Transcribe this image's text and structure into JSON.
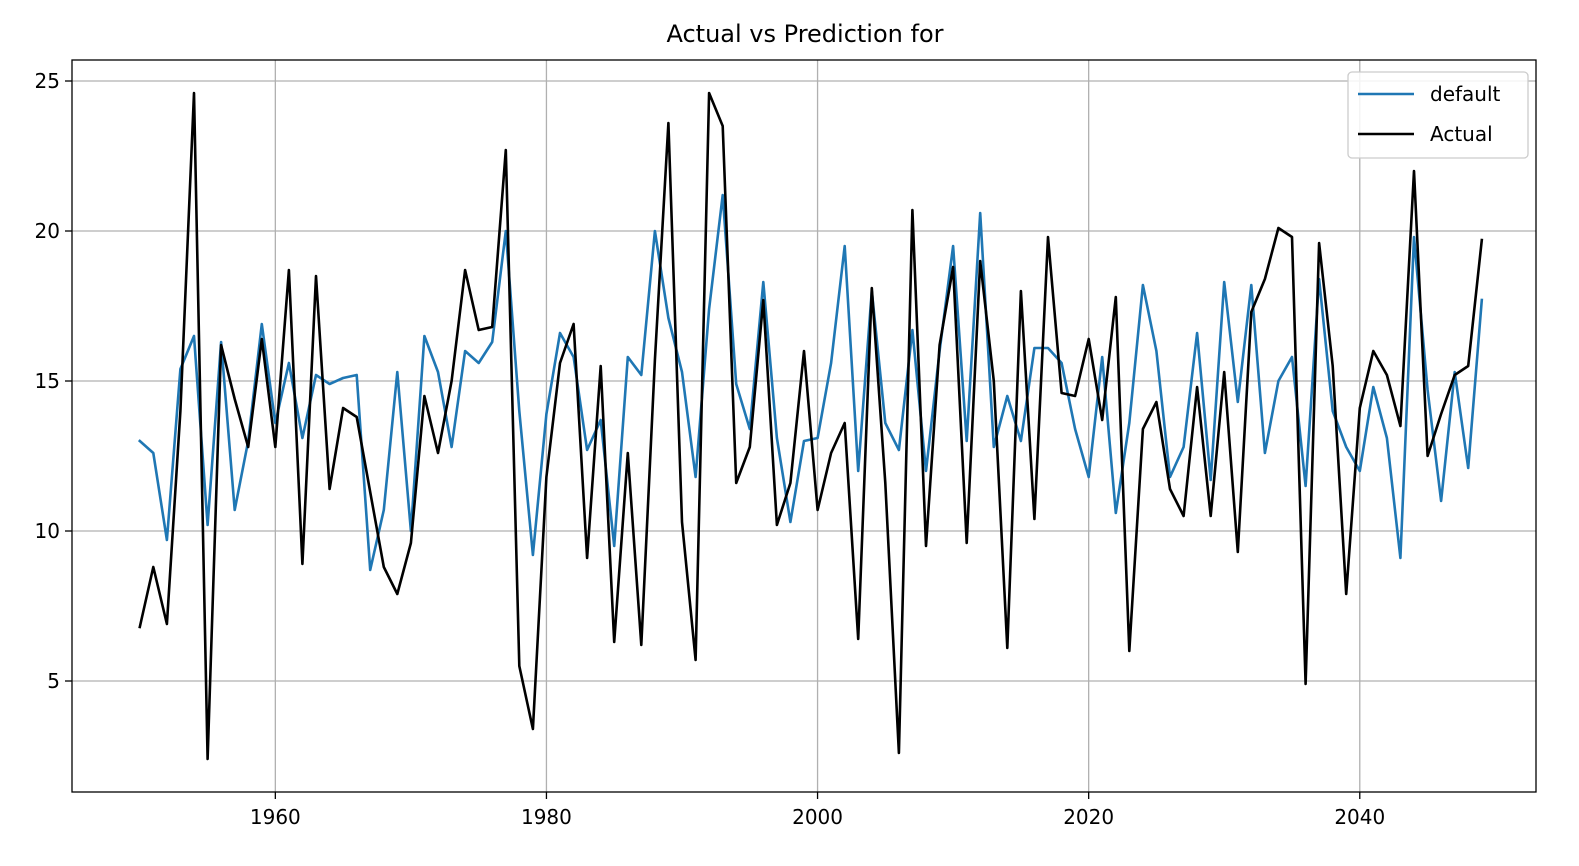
{
  "chart_data": {
    "type": "line",
    "title": "Actual vs Prediction for",
    "xlabel": "",
    "ylabel": "",
    "xlim": [
      1945,
      2053
    ],
    "ylim": [
      1.3,
      25.7
    ],
    "x_ticks": [
      1960,
      1980,
      2000,
      2020,
      2040
    ],
    "y_ticks": [
      5,
      10,
      15,
      20,
      25
    ],
    "grid": true,
    "legend_position": "top-right",
    "x": [
      1950,
      1951,
      1952,
      1953,
      1954,
      1955,
      1956,
      1957,
      1958,
      1959,
      1960,
      1961,
      1962,
      1963,
      1964,
      1965,
      1966,
      1967,
      1968,
      1969,
      1970,
      1971,
      1972,
      1973,
      1974,
      1975,
      1976,
      1977,
      1978,
      1979,
      1980,
      1981,
      1982,
      1983,
      1984,
      1985,
      1986,
      1987,
      1988,
      1989,
      1990,
      1991,
      1992,
      1993,
      1994,
      1995,
      1996,
      1997,
      1998,
      1999,
      2000,
      2001,
      2002,
      2003,
      2004,
      2005,
      2006,
      2007,
      2008,
      2009,
      2010,
      2011,
      2012,
      2013,
      2014,
      2015,
      2016,
      2017,
      2018,
      2019,
      2020,
      2021,
      2022,
      2023,
      2024,
      2025,
      2026,
      2027,
      2028,
      2029,
      2030,
      2031,
      2032,
      2033,
      2034,
      2035,
      2036,
      2037,
      2038,
      2039,
      2040,
      2041,
      2042,
      2043,
      2044,
      2045,
      2046,
      2047,
      2048,
      2049
    ],
    "series": [
      {
        "name": "default",
        "color": "#1f77b4",
        "values": [
          13.0,
          12.6,
          9.7,
          15.4,
          16.5,
          10.2,
          16.3,
          10.7,
          13.0,
          16.9,
          13.6,
          15.6,
          13.1,
          15.2,
          14.9,
          15.1,
          15.2,
          8.7,
          10.7,
          15.3,
          10.0,
          16.5,
          15.3,
          12.8,
          16.0,
          15.6,
          16.3,
          20.0,
          14.0,
          9.2,
          13.9,
          16.6,
          15.8,
          12.7,
          13.7,
          9.5,
          15.8,
          15.2,
          20.0,
          17.1,
          15.3,
          11.8,
          17.4,
          21.2,
          14.9,
          13.4,
          18.3,
          13.1,
          10.3,
          13.0,
          13.1,
          15.6,
          19.5,
          12.0,
          18.0,
          13.6,
          12.7,
          16.7,
          12.0,
          16.0,
          19.5,
          13.0,
          20.6,
          12.8,
          14.5,
          13.0,
          16.1,
          16.1,
          15.6,
          13.4,
          11.8,
          15.8,
          10.6,
          13.6,
          18.2,
          16.0,
          11.8,
          12.8,
          16.6,
          11.7,
          18.3,
          14.3,
          18.2,
          12.6,
          15.0,
          15.8,
          11.5,
          18.4,
          14.0,
          12.8,
          12.0,
          14.8,
          13.1,
          9.1,
          19.8,
          14.7,
          11.0,
          15.3,
          12.1,
          17.7
        ]
      },
      {
        "name": "Actual",
        "color": "#000000",
        "values": [
          6.8,
          8.8,
          6.9,
          14.0,
          24.6,
          2.4,
          16.2,
          14.4,
          12.8,
          16.4,
          12.8,
          18.7,
          8.9,
          18.5,
          11.4,
          14.1,
          13.8,
          11.3,
          8.8,
          7.9,
          9.6,
          14.5,
          12.6,
          15.0,
          18.7,
          16.7,
          16.8,
          22.7,
          5.5,
          3.4,
          11.8,
          15.6,
          16.9,
          9.1,
          15.5,
          6.3,
          12.6,
          6.2,
          15.7,
          23.6,
          10.3,
          5.7,
          24.6,
          23.5,
          11.6,
          12.8,
          17.7,
          10.2,
          11.6,
          16.0,
          10.7,
          12.6,
          13.6,
          6.4,
          18.1,
          11.6,
          2.6,
          20.7,
          9.5,
          16.2,
          18.8,
          9.6,
          19.0,
          15.0,
          6.1,
          18.0,
          10.4,
          19.8,
          14.6,
          14.5,
          16.4,
          13.7,
          17.8,
          6.0,
          13.4,
          14.3,
          11.4,
          10.5,
          14.8,
          10.5,
          15.3,
          9.3,
          17.3,
          18.4,
          20.1,
          19.8,
          4.9,
          19.6,
          15.5,
          7.9,
          14.1,
          16.0,
          15.2,
          13.5,
          22.0,
          12.5,
          13.9,
          15.2,
          15.5,
          19.7
        ]
      }
    ]
  }
}
